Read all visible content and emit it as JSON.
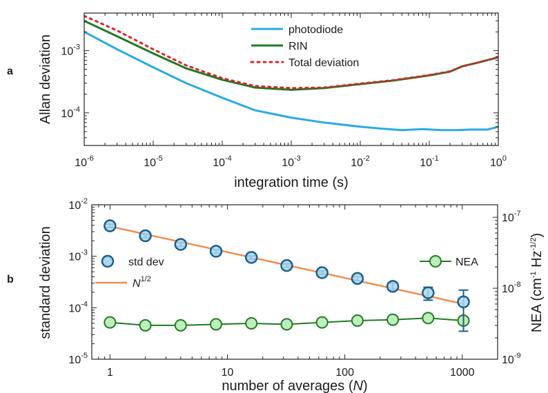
{
  "colors": {
    "photodiode": "#29abe2",
    "rin": "#1f7a1f",
    "total": "#e0202a",
    "std_fill": "#a9d8ee",
    "std_edge": "#1b5e8a",
    "fit": "#f28c4a",
    "nea_fill": "#bdefbd",
    "nea_edge": "#1f7a1f"
  },
  "panel_labels": {
    "a": "a",
    "b": "b"
  },
  "chart_data": [
    {
      "type": "line",
      "panel": "a",
      "xlabel": "integration time (s)",
      "ylabel": "Allan deviation",
      "xscale": "log",
      "yscale": "log",
      "xlim": [
        1e-06,
        1
      ],
      "ylim": [
        3e-05,
        0.004
      ],
      "x_ticks": [
        {
          "value": 1e-06,
          "base": "10",
          "exp": "-6"
        },
        {
          "value": 1e-05,
          "base": "10",
          "exp": "-5"
        },
        {
          "value": 0.0001,
          "base": "10",
          "exp": "-4"
        },
        {
          "value": 0.001,
          "base": "10",
          "exp": "-3"
        },
        {
          "value": 0.01,
          "base": "10",
          "exp": "-2"
        },
        {
          "value": 0.1,
          "base": "10",
          "exp": "-1"
        },
        {
          "value": 1,
          "base": "10",
          "exp": "0"
        }
      ],
      "y_ticks": [
        {
          "value": 0.0001,
          "base": "10",
          "exp": "-4"
        },
        {
          "value": 0.001,
          "base": "10",
          "exp": "-3"
        }
      ],
      "legend_position": "top-center",
      "series": [
        {
          "name": "photodiode",
          "x": [
            1e-06,
            3e-06,
            1e-05,
            3e-05,
            0.0001,
            0.0003,
            0.001,
            0.003,
            0.01,
            0.02,
            0.04,
            0.08,
            0.15,
            0.25,
            0.4,
            0.7,
            1
          ],
          "y": [
            0.002,
            0.00105,
            0.00054,
            0.0003,
            0.000175,
            0.00011,
            8.4e-05,
            7e-05,
            6e-05,
            5.6e-05,
            5.3e-05,
            5.5e-05,
            5.3e-05,
            5.3e-05,
            5.4e-05,
            5.4e-05,
            6e-05
          ]
        },
        {
          "name": "RIN",
          "x": [
            1e-06,
            3e-06,
            1e-05,
            3e-05,
            0.0001,
            0.0003,
            0.001,
            0.003,
            0.01,
            0.03,
            0.1,
            0.2,
            0.3,
            0.5,
            1
          ],
          "y": [
            0.003,
            0.0017,
            0.0009,
            0.00052,
            0.00034,
            0.000255,
            0.000235,
            0.00025,
            0.00029,
            0.00033,
            0.0004,
            0.00046,
            0.00056,
            0.00064,
            0.00078
          ]
        },
        {
          "name": "Total deviation",
          "x": [
            1e-06,
            3e-06,
            1e-05,
            3e-05,
            0.0001,
            0.0003,
            0.001,
            0.003,
            0.01,
            0.03,
            0.1,
            0.2,
            0.3,
            0.5,
            1
          ],
          "y": [
            0.0036,
            0.0021,
            0.00105,
            0.00058,
            0.00036,
            0.00027,
            0.00025,
            0.000255,
            0.000295,
            0.000335,
            0.000405,
            0.000465,
            0.00056,
            0.00064,
            0.00078
          ]
        }
      ]
    },
    {
      "type": "scatter",
      "panel": "b",
      "xlabel_text": "number of averages (",
      "xlabel_var": "N",
      "xlabel_close": ")",
      "ylabel": "standard deviation",
      "y2label_main": "NEA (cm",
      "y2label_exp1": "-1",
      "y2label_mid": " Hz",
      "y2label_exp2": "-1/2",
      "y2label_close": ")",
      "xscale": "log",
      "yscale": "log",
      "xlim": [
        0.7,
        2000
      ],
      "ylim": [
        1e-05,
        0.01
      ],
      "y2lim": [
        1e-09,
        1.5e-07
      ],
      "x_ticks": [
        {
          "value": 1,
          "label": "1"
        },
        {
          "value": 10,
          "label": "10"
        },
        {
          "value": 100,
          "label": "100"
        },
        {
          "value": 1000,
          "label": "1000"
        }
      ],
      "y_ticks": [
        {
          "value": 1e-05,
          "base": "10",
          "exp": "-5"
        },
        {
          "value": 0.0001,
          "base": "10",
          "exp": "-4"
        },
        {
          "value": 0.001,
          "base": "10",
          "exp": "-3"
        },
        {
          "value": 0.01,
          "base": "10",
          "exp": "-2"
        }
      ],
      "y2_ticks": [
        {
          "value": 1e-09,
          "base": "10",
          "exp": "-9"
        },
        {
          "value": 1e-08,
          "base": "10",
          "exp": "-8"
        },
        {
          "value": 1e-07,
          "base": "10",
          "exp": "-7"
        }
      ],
      "legend_left_position": "middle-left",
      "legend_right_position": "middle-right",
      "series": [
        {
          "name": "std dev",
          "axis": "left",
          "x": [
            1,
            2,
            4,
            8,
            16,
            32,
            64,
            128,
            256,
            512,
            1024
          ],
          "y": [
            0.0039,
            0.0025,
            0.0017,
            0.00125,
            0.00095,
            0.00066,
            0.00048,
            0.00037,
            0.00026,
            0.000195,
            0.00013
          ],
          "err_low": [
            0.0036,
            0.0023,
            0.00155,
            0.00115,
            0.00087,
            0.0006,
            0.00044,
            0.000335,
            0.00022,
            0.00014,
            3.5e-05
          ],
          "err_high": [
            0.0042,
            0.0027,
            0.00185,
            0.00135,
            0.00103,
            0.00072,
            0.00052,
            0.000405,
            0.0003,
            0.00025,
            0.00022
          ]
        },
        {
          "name_base": "N",
          "name_exp": "1/2",
          "type": "line",
          "axis": "left",
          "x": [
            1,
            1000
          ],
          "y": [
            0.0038,
            0.00012
          ]
        },
        {
          "name": "NEA",
          "axis": "right",
          "type": "line+markers",
          "x": [
            1,
            2,
            4,
            8,
            16,
            32,
            64,
            128,
            256,
            512,
            1024
          ],
          "y": [
            3.3e-09,
            3e-09,
            3e-09,
            3.1e-09,
            3.2e-09,
            3.1e-09,
            3.3e-09,
            3.5e-09,
            3.6e-09,
            3.8e-09,
            3.5e-09
          ]
        }
      ]
    }
  ]
}
